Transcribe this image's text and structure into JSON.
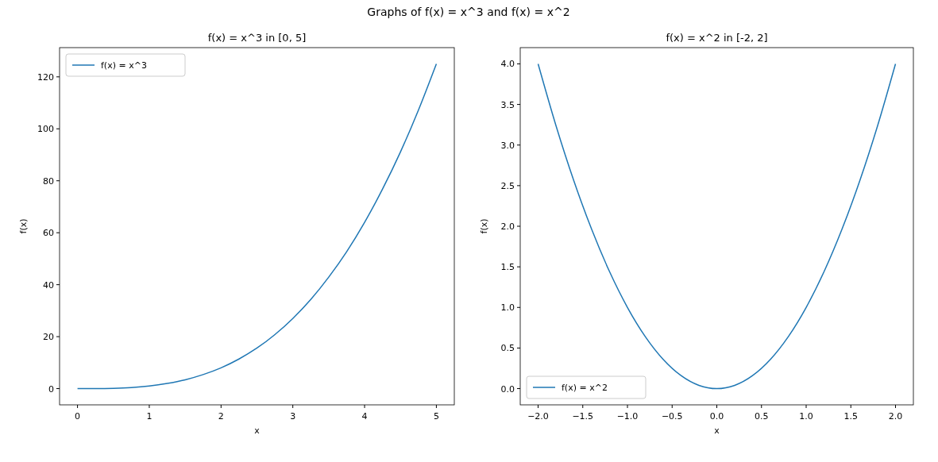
{
  "chart_data": [
    {
      "type": "line",
      "title": "f(x) = x^3 in [0, 5]",
      "xlabel": "x",
      "ylabel": "f(x)",
      "annotations": [
        "Graphs of f(x) = x^3 and f(x) = x^2"
      ],
      "x": [
        0,
        0.25,
        0.5,
        0.75,
        1,
        1.25,
        1.5,
        1.75,
        2,
        2.25,
        2.5,
        2.75,
        3,
        3.25,
        3.5,
        3.75,
        4,
        4.25,
        4.5,
        4.75,
        5
      ],
      "series": [
        {
          "name": "f(x) = x^3",
          "color": "#1f77b4",
          "values": [
            0,
            0,
            0.1,
            0.4,
            1,
            2,
            3.4,
            5.4,
            8,
            11.4,
            15.6,
            20.8,
            27,
            34.3,
            42.9,
            52.7,
            64,
            76.8,
            91.1,
            107.2,
            125
          ]
        }
      ],
      "xlim": [
        -0.25,
        5.25
      ],
      "xticks": [
        0,
        1,
        2,
        3,
        4,
        5
      ],
      "ylim": [
        -6.25,
        131.25
      ],
      "yticks": [
        0,
        20,
        40,
        60,
        80,
        100,
        120
      ],
      "legend": "top left",
      "grid": false
    },
    {
      "type": "line",
      "title": "f(x) = x^2 in [-2, 2]",
      "xlabel": "x",
      "ylabel": "f(x)",
      "x": [
        -2,
        -1.8,
        -1.6,
        -1.4,
        -1.2,
        -1,
        -0.8,
        -0.6,
        -0.4,
        -0.2,
        0,
        0.2,
        0.4,
        0.6,
        0.8,
        1,
        1.2,
        1.4,
        1.6,
        1.8,
        2
      ],
      "series": [
        {
          "name": "f(x) = x^2",
          "color": "#1f77b4",
          "values": [
            4,
            3.24,
            2.56,
            1.96,
            1.44,
            1,
            0.64,
            0.36,
            0.16,
            0.04,
            0,
            0.04,
            0.16,
            0.36,
            0.64,
            1,
            1.44,
            1.96,
            2.56,
            3.24,
            4
          ]
        }
      ],
      "xlim": [
        -2.2,
        2.2
      ],
      "xticks": [
        {
          "value": -2,
          "label": "−2.0"
        },
        {
          "value": -1.5,
          "label": "−1.5"
        },
        {
          "value": -1,
          "label": "−1.0"
        },
        {
          "value": -0.5,
          "label": "−0.5"
        },
        {
          "value": 0,
          "label": "0.0"
        },
        {
          "value": 0.5,
          "label": "0.5"
        },
        {
          "value": 1,
          "label": "1.0"
        },
        {
          "value": 1.5,
          "label": "1.5"
        },
        {
          "value": 2,
          "label": "2.0"
        }
      ],
      "ylim": [
        -0.2,
        4.2
      ],
      "yticks": [
        {
          "value": 0,
          "label": "0.0"
        },
        {
          "value": 0.5,
          "label": "0.5"
        },
        {
          "value": 1,
          "label": "1.0"
        },
        {
          "value": 1.5,
          "label": "1.5"
        },
        {
          "value": 2,
          "label": "2.0"
        },
        {
          "value": 2.5,
          "label": "2.5"
        },
        {
          "value": 3,
          "label": "3.0"
        },
        {
          "value": 3.5,
          "label": "3.5"
        },
        {
          "value": 4,
          "label": "4.0"
        }
      ],
      "legend": "bottom left",
      "grid": false
    }
  ]
}
